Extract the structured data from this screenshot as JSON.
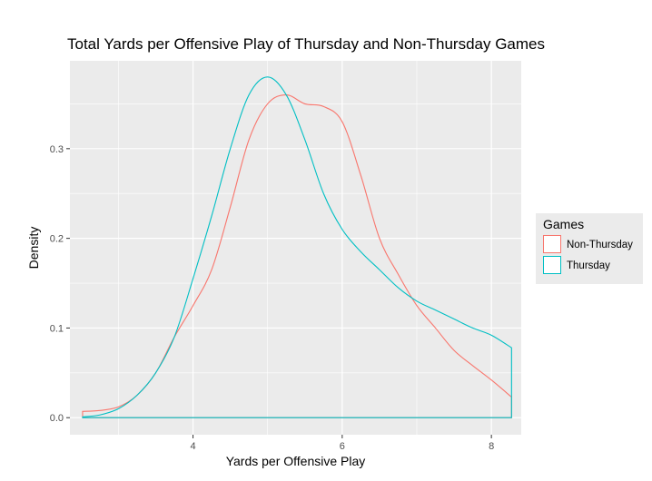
{
  "chart_data": {
    "type": "line",
    "title": "Total Yards per Offensive Play of Thursday and Non-Thursday Games",
    "xlabel": "Yards per Offensive Play",
    "ylabel": "Density",
    "xlim": [
      2.35,
      8.4
    ],
    "ylim": [
      -0.019,
      0.398
    ],
    "x_ticks": [
      4,
      6,
      8
    ],
    "x_tick_labels": [
      "4",
      "6",
      "8"
    ],
    "y_ticks": [
      0.0,
      0.1,
      0.2,
      0.3
    ],
    "y_tick_labels": [
      "0.0",
      "0.1",
      "0.2",
      "0.3"
    ],
    "grid": true,
    "legend": {
      "title": "Games",
      "position": "right"
    },
    "series": [
      {
        "name": "Non-Thursday",
        "color": "#F8766D",
        "x": [
          2.52,
          2.75,
          3.0,
          3.25,
          3.5,
          3.75,
          4.0,
          4.25,
          4.5,
          4.75,
          5.0,
          5.25,
          5.5,
          5.75,
          6.0,
          6.25,
          6.5,
          6.75,
          7.0,
          7.25,
          7.5,
          7.75,
          8.0,
          8.27
        ],
        "y": [
          0.007,
          0.008,
          0.012,
          0.025,
          0.05,
          0.09,
          0.125,
          0.165,
          0.235,
          0.31,
          0.35,
          0.36,
          0.35,
          0.347,
          0.33,
          0.27,
          0.2,
          0.16,
          0.125,
          0.1,
          0.075,
          0.058,
          0.042,
          0.023
        ]
      },
      {
        "name": "Thursday",
        "color": "#00BFC4",
        "x": [
          2.52,
          2.75,
          3.0,
          3.25,
          3.5,
          3.75,
          4.0,
          4.25,
          4.5,
          4.75,
          5.0,
          5.25,
          5.5,
          5.75,
          6.0,
          6.25,
          6.5,
          6.75,
          7.0,
          7.25,
          7.5,
          7.75,
          8.0,
          8.27
        ],
        "y": [
          0.001,
          0.003,
          0.01,
          0.025,
          0.05,
          0.09,
          0.155,
          0.225,
          0.3,
          0.36,
          0.38,
          0.36,
          0.31,
          0.25,
          0.21,
          0.185,
          0.165,
          0.145,
          0.13,
          0.12,
          0.11,
          0.1,
          0.092,
          0.078
        ]
      }
    ]
  }
}
